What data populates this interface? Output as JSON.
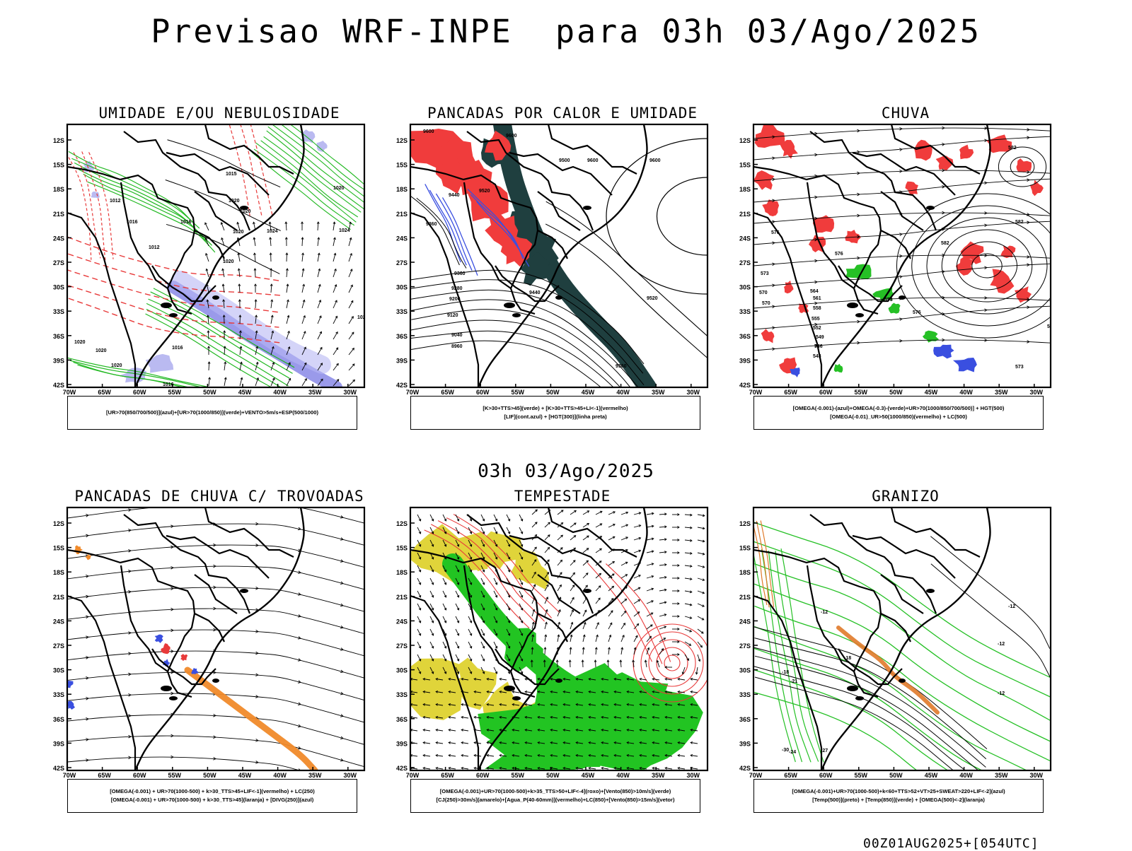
{
  "header": {
    "title": "Previsao WRF-INPE  para 03h 03/Ago/2025"
  },
  "mid_time": "03h 03/Ago/2025",
  "footer": "00Z01AUG2025+[054UTC]",
  "axes": {
    "lat_labels": [
      "12S",
      "15S",
      "18S",
      "21S",
      "24S",
      "27S",
      "30S",
      "33S",
      "36S",
      "39S",
      "42S"
    ],
    "lon_labels": [
      "70W",
      "65W",
      "60W",
      "55W",
      "50W",
      "45W",
      "40W",
      "35W",
      "30W"
    ]
  },
  "panels": [
    {
      "id": "umidade",
      "title": "UMIDADE E/OU NEBULOSIDADE",
      "legend": [
        "[UR>70(850/700/500)](azul)+[UR>70(1000/850)](verde)+VENTO>5m/s+ESP(500/1000)"
      ],
      "labels": [
        [
          "1012",
          60,
          110
        ],
        [
          "1016",
          84,
          140
        ],
        [
          "1012",
          115,
          176
        ],
        [
          "1016",
          160,
          140
        ],
        [
          "1020",
          228,
          110
        ],
        [
          "1020",
          244,
          125
        ],
        [
          "1020",
          234,
          154
        ],
        [
          "1024",
          282,
          153
        ],
        [
          "1020",
          220,
          196
        ],
        [
          "1024",
          384,
          152
        ],
        [
          "1020",
          376,
          92
        ],
        [
          "1015",
          224,
          72
        ],
        [
          "1016",
          135,
          370
        ],
        [
          "1016",
          240,
          402
        ],
        [
          "1012",
          178,
          414
        ],
        [
          "1008",
          140,
          448
        ],
        [
          "1020",
          70,
          380
        ],
        [
          "1020",
          62,
          343
        ],
        [
          "1026",
          410,
          275
        ],
        [
          "1028",
          380,
          395
        ],
        [
          "1016",
          148,
          318
        ],
        [
          "1020",
          40,
          322
        ],
        [
          "1020",
          10,
          310
        ]
      ]
    },
    {
      "id": "pancadas-calor",
      "title": "PANCADAS POR CALOR E UMIDADE",
      "legend": [
        "[K>30+TTS>45](verde) + [K>30+TTS>45+LI<-1](vermelho)",
        "[LIF](cont.azul) + [HGT(300)](linha preta)"
      ],
      "labels": [
        [
          "9600",
          18,
          12
        ],
        [
          "9600",
          135,
          18
        ],
        [
          "9500",
          210,
          53
        ],
        [
          "9600",
          250,
          53
        ],
        [
          "9600",
          338,
          53
        ],
        [
          "9440",
          54,
          102
        ],
        [
          "9520",
          97,
          96
        ],
        [
          "9360",
          22,
          143
        ],
        [
          "9440",
          168,
          240
        ],
        [
          "9520",
          334,
          248
        ],
        [
          "9360",
          62,
          213
        ],
        [
          "9280",
          58,
          234
        ],
        [
          "9200",
          55,
          249
        ],
        [
          "9120",
          52,
          272
        ],
        [
          "9040",
          58,
          300
        ],
        [
          "8960",
          58,
          316
        ],
        [
          "9360",
          290,
          344
        ]
      ]
    },
    {
      "id": "chuva",
      "title": "CHUVA",
      "legend": [
        "[OMEGA(-0.001)-(azul)+OMEGA(-0.3)-(verde)+UR>70(1000/850/700/500)] + HGT(500)",
        "[OMEGA(-0.01)_UR>50(1000/850)(vermelho) + LC(500)"
      ],
      "labels": [
        [
          "582",
          360,
          35
        ],
        [
          "582",
          265,
          170
        ],
        [
          "582",
          370,
          140
        ],
        [
          "582",
          415,
          288
        ],
        [
          "576",
          25,
          155
        ],
        [
          "576",
          115,
          185
        ],
        [
          "573",
          10,
          213
        ],
        [
          "570",
          8,
          240
        ],
        [
          "570",
          12,
          255
        ],
        [
          "564",
          80,
          238
        ],
        [
          "561",
          84,
          248
        ],
        [
          "558",
          84,
          262
        ],
        [
          "555",
          82,
          277
        ],
        [
          "552",
          84,
          290
        ],
        [
          "549",
          88,
          303
        ],
        [
          "546",
          86,
          316
        ],
        [
          "543",
          84,
          330
        ],
        [
          "576",
          225,
          268
        ],
        [
          "573",
          185,
          250
        ],
        [
          "573",
          370,
          345
        ]
      ]
    },
    {
      "id": "pancadas-trovoadas",
      "title": "PANCADAS DE CHUVA C/ TROVOADAS",
      "legend": [
        "[OMEGA(-0.001) + UR>70(1000-500) + k>30_TTS>45+LIF<-1](vermelho) + LC(250)",
        "[OMEGA(-0.001) + UR>70(1000-500) + k>30_TTS>45](laranja) + [DIVG(250)](azul)"
      ],
      "labels": []
    },
    {
      "id": "tempestade",
      "title": "TEMPESTADE",
      "legend": [
        "[OMEGA(-0.001)+UR>70(1000-500)+k>35_TTS>50+LIF<-4](roxo)+[Vento(850)>10m/s](verde)",
        "[CJ(250)>30m/s](amarelo)+[Agua_P(40-60mm)](vermelho)+LC(850)+[Vento(850)>15m/s](vetor)"
      ],
      "labels": []
    },
    {
      "id": "granizo",
      "title": "GRANIZO",
      "legend": [
        "[OMEGA(-0.001)+UR>70(1000-500)+k<60+TTS>52+VT>25+SWEAT>220+LIF<-2](azul)",
        "[Temp(500)](preto) + [Temp(850)](verde) + [OMEGA(500)<-2](laranja)"
      ],
      "labels": [
        [
          "-12",
          95,
          150
        ],
        [
          "-12",
          360,
          142
        ],
        [
          "-12",
          345,
          195
        ],
        [
          "-12",
          345,
          265
        ],
        [
          "-18",
          128,
          215
        ],
        [
          "-18",
          40,
          235
        ],
        [
          "-21",
          52,
          248
        ],
        [
          "-24",
          50,
          348
        ],
        [
          "-27",
          95,
          346
        ],
        [
          "-30",
          40,
          345
        ]
      ]
    }
  ]
}
